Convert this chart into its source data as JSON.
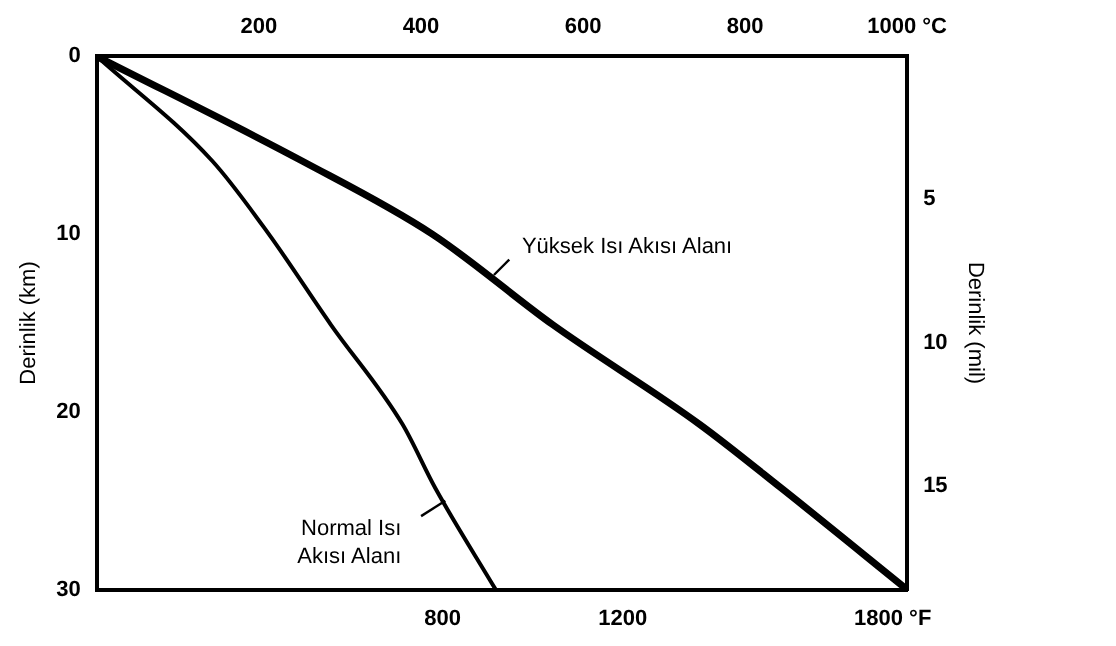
{
  "chart_data": {
    "type": "line",
    "xlabel": null,
    "ylabel": "Derinlik (km)",
    "y2label": "Derinlik (mil)",
    "xlim": [
      32,
      1832
    ],
    "xticks": [
      800,
      1200,
      {
        "value": 1800,
        "label": "1800 °F"
      }
    ],
    "x2lim": [
      0,
      1000
    ],
    "x2ticks": [
      200,
      400,
      600,
      800,
      {
        "value": 1000,
        "label": "1000 °C"
      }
    ],
    "ylim": [
      30,
      0
    ],
    "yticks": [
      0,
      10,
      20,
      30
    ],
    "y2lim": [
      18.64,
      0
    ],
    "y2ticks": [
      5,
      10,
      15
    ],
    "series": [
      {
        "color": "#000000",
        "x": [
          32,
          489,
          777,
          1045,
          1371,
          1553,
          1832
        ],
        "values": [
          0,
          5.9,
          10,
          15.1,
          20.7,
          24.3,
          30
        ]
      },
      {
        "color": "#000000",
        "x": [
          32,
          289,
          414,
          552,
          711,
          784,
          918
        ],
        "values": [
          0,
          5.9,
          10,
          15.1,
          20.7,
          24.3,
          30
        ]
      }
    ],
    "annotations": [
      {
        "text": "Yüksek Isı Akısı Alanı",
        "x": 914,
        "y": 12.3
      },
      {
        "text": "Normal Isı\nAkısı Alanı",
        "x": 806,
        "y": 25
      }
    ],
    "grid": false,
    "legend": false,
    "marker": "none",
    "line_style": "solid"
  }
}
